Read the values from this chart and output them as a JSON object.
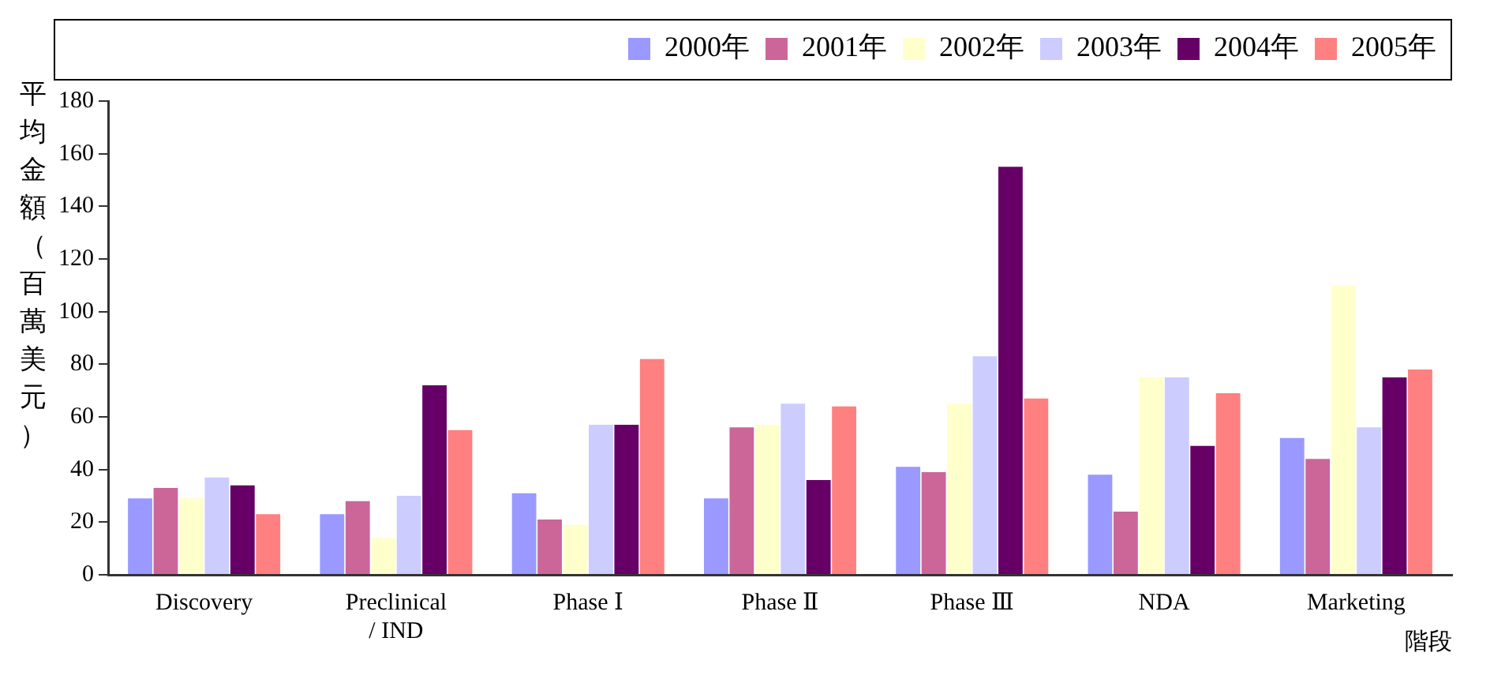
{
  "chart_data": {
    "type": "bar",
    "xlabel": "階段",
    "ylabel": "平均金額（百萬美元）",
    "categories": [
      "Discovery",
      "Preclinical / IND",
      "Phase Ⅰ",
      "Phase Ⅱ",
      "Phase Ⅲ",
      "NDA",
      "Marketing"
    ],
    "series": [
      {
        "name": "2000年",
        "color": "#9999ff",
        "values": [
          29,
          23,
          31,
          29,
          41,
          38,
          52
        ]
      },
      {
        "name": "2001年",
        "color": "#cc6699",
        "values": [
          33,
          28,
          21,
          56,
          39,
          24,
          44
        ]
      },
      {
        "name": "2002年",
        "color": "#ffffcc",
        "values": [
          29,
          14,
          19,
          57,
          65,
          75,
          110
        ]
      },
      {
        "name": "2003年",
        "color": "#ccccff",
        "values": [
          37,
          30,
          57,
          65,
          83,
          75,
          56
        ]
      },
      {
        "name": "2004年",
        "color": "#660066",
        "values": [
          34,
          72,
          57,
          36,
          155,
          49,
          75
        ]
      },
      {
        "name": "2005年",
        "color": "#ff8080",
        "values": [
          23,
          55,
          82,
          64,
          67,
          69,
          78
        ]
      }
    ],
    "ylim": [
      0,
      180
    ],
    "yticks": [
      0,
      20,
      40,
      60,
      80,
      100,
      120,
      140,
      160,
      180
    ],
    "grid": false,
    "legend": "top right"
  }
}
